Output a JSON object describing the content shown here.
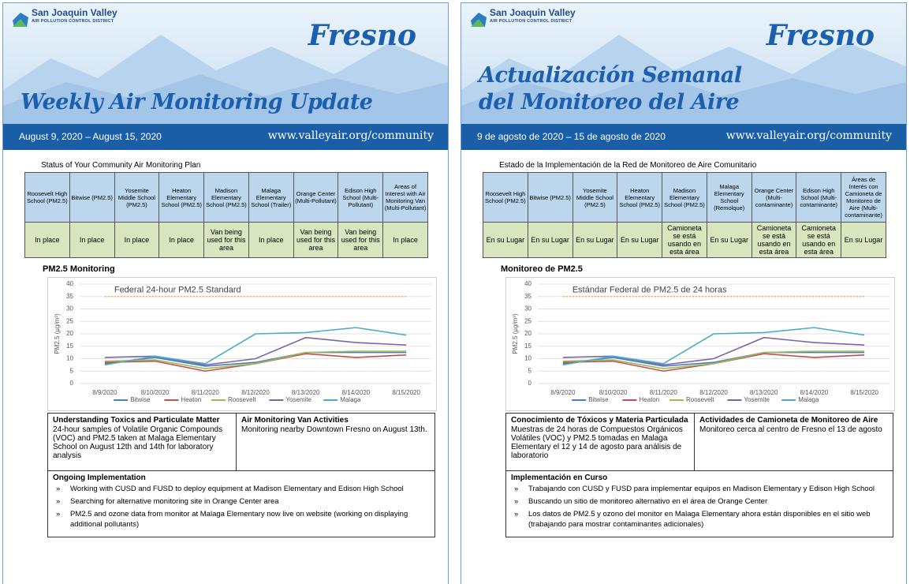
{
  "pages": [
    {
      "logo": {
        "name": "San Joaquin Valley",
        "subtitle": "AIR POLLUTION CONTROL DISTRICT"
      },
      "city": "Fresno",
      "title_lines": [
        "Weekly Air Monitoring Update"
      ],
      "dates": "August 9, 2020 – August 15, 2020",
      "url": "www.valleyair.org/community",
      "table": {
        "title": "Status of Your Community Air Monitoring Plan",
        "headers": [
          "Roosevelt High School (PM2.5)",
          "Bitwise (PM2.5)",
          "Yosemite Middle School (PM2.5)",
          "Heaton Elementary School (PM2.5)",
          "Madison Elementary School (PM2.5)",
          "Malaga Elementary School (Trailer)",
          "Orange Center (Multi-Pollutant)",
          "Edison High School (Multi-Pollutant)",
          "Areas of Interest with Air Monitoring Van (Multi-Pollutant)"
        ],
        "row": [
          "In place",
          "In place",
          "In place",
          "In place",
          "Van being used for this area",
          "In place",
          "Van being used for this area",
          "Van being used for this area",
          "In place"
        ]
      },
      "chart_title": "PM2.5 Monitoring",
      "boxes": [
        {
          "title": "Understanding Toxics and Particulate Matter",
          "text": "24-hour samples of Volatile Organic Compounds (VOC) and PM2.5 taken at Malaga Elementary School on August 12th and 14th for laboratory analysis"
        },
        {
          "title": "Air Monitoring Van Activities",
          "text": "Monitoring nearby Downtown Fresno on August 13th."
        }
      ],
      "ongoing": {
        "title": "Ongoing Implementation",
        "items": [
          "Working with CUSD and FUSD to deploy equipment at Madison Elementary and Edison High School",
          "Searching for alternative monitoring site in Orange Center area",
          "PM2.5 and ozone data from monitor at Malaga Elementary now live on website (working on displaying additional pollutants)"
        ]
      }
    },
    {
      "logo": {
        "name": "San Joaquin Valley",
        "subtitle": "AIR POLLUTION CONTROL DISTRICT"
      },
      "city": "Fresno",
      "title_lines": [
        "Actualización Semanal",
        "del Monitoreo del Aire"
      ],
      "dates": "9 de agosto de 2020 – 15 de agosto de 2020",
      "url": "www.valleyair.org/community",
      "table": {
        "title": "Estado de la Implementación de la Red de Monitoreo de Aire Comunitario",
        "headers": [
          "Roosevelt High School (PM2.5)",
          "Bitwise (PM2.5)",
          "Yosemite Middle School (PM2.5)",
          "Heaton Elementary School (PM2.5)",
          "Madison Elementary School (PM2.5)",
          "Malaga Elementary School (Remolque)",
          "Orange Center (Multi-contaminante)",
          "Edison High School (Multi-contaminante)",
          "Áreas de Interés con Camioneta de Monitoreo de Aire (Multi-contaminante)"
        ],
        "row": [
          "En su Lugar",
          "En su Lugar",
          "En su Lugar",
          "En su Lugar",
          "Camioneta se está usando en esta área",
          "En su Lugar",
          "Camioneta se está usando en esta área",
          "Camioneta se está usando en esta área",
          "En su Lugar"
        ]
      },
      "chart_title": "Monitoreo de PM2.5",
      "boxes": [
        {
          "title": "Conocimiento de Tóxicos y Materia Particulada",
          "text": "Muestras de 24 horas de Compuestos Orgánicos Volátiles (VOC) y PM2.5 tomadas en Malaga Elementary el 12 y 14 de agosto para análisis de laboratorio"
        },
        {
          "title": "Actividades de Camioneta de Monitoreo de Aire",
          "text": "Monitoreo cerca al centro de Fresno el 13 de agosto"
        }
      ],
      "ongoing": {
        "title": "Implementación en Curso",
        "items": [
          "Trabajando con CUSD y FUSD para implementar equipos en Madison Elementary y Edison High School",
          "Buscando un sitio de monitoreo alternativo en el área de Orange Center",
          "Los datos de PM2.5 y ozono del monitor en Malaga Elementary ahora están disponibles en el sitio web (trabajando para mostrar contaminantes adicionales)"
        ]
      }
    }
  ],
  "chart_data": [
    {
      "type": "line",
      "y_label": "PM2.5 (µg/m³)",
      "categories": [
        "8/9/2020",
        "8/10/2020",
        "8/11/2020",
        "8/12/2020",
        "8/13/2020",
        "8/14/2020",
        "8/15/2020"
      ],
      "series": [
        {
          "name": "Bitwise",
          "color": "#4a7ebb",
          "values": [
            8,
            10.5,
            7,
            8.5,
            12.5,
            12.5,
            12.5
          ]
        },
        {
          "name": "Heaton",
          "color": "#c0504d",
          "values": [
            8.5,
            9,
            5,
            8,
            12,
            10.5,
            11.5
          ]
        },
        {
          "name": "Roosevelt",
          "color": "#9bbb59",
          "values": [
            9,
            9.5,
            6,
            8,
            12.5,
            13,
            13
          ]
        },
        {
          "name": "Yosemite",
          "color": "#8064a2",
          "values": [
            10.5,
            11,
            7.5,
            10,
            18.5,
            16.5,
            15.5
          ]
        },
        {
          "name": "Malaga",
          "color": "#4bacc6",
          "values": [
            7.5,
            11,
            8,
            20,
            20.5,
            22.5,
            19.5
          ]
        }
      ],
      "standard": {
        "value": 35,
        "label": "Federal 24-hour PM2.5 Standard",
        "color": "#f0a050"
      },
      "ylim": [
        0,
        40
      ],
      "yticks": [
        0,
        5,
        10,
        15,
        20,
        25,
        30,
        35,
        40
      ],
      "grid": true,
      "legend": "bottom"
    },
    {
      "type": "line",
      "y_label": "PM2.5 (µg/m³)",
      "categories": [
        "8/9/2020",
        "8/10/2020",
        "8/11/2020",
        "8/12/2020",
        "8/13/2020",
        "8/14/2020",
        "8/15/2020"
      ],
      "series": [
        {
          "name": "Bitwise",
          "color": "#4a7ebb",
          "values": [
            8,
            10.5,
            7,
            8.5,
            12.5,
            12.5,
            12.5
          ]
        },
        {
          "name": "Heaton",
          "color": "#c0504d",
          "values": [
            8.5,
            9,
            5,
            8,
            12,
            10.5,
            11.5
          ]
        },
        {
          "name": "Roosevelt",
          "color": "#9bbb59",
          "values": [
            9,
            9.5,
            6,
            8,
            12.5,
            13,
            13
          ]
        },
        {
          "name": "Yosemite",
          "color": "#8064a2",
          "values": [
            10.5,
            11,
            7.5,
            10,
            18.5,
            16.5,
            15.5
          ]
        },
        {
          "name": "Malaga",
          "color": "#4bacc6",
          "values": [
            7.5,
            11,
            8,
            20,
            20.5,
            22.5,
            19.5
          ]
        }
      ],
      "standard": {
        "value": 35,
        "label": "Estándar Federal de PM2.5 de 24 horas",
        "color": "#f0a050"
      },
      "ylim": [
        0,
        40
      ],
      "yticks": [
        0,
        5,
        10,
        15,
        20,
        25,
        30,
        35,
        40
      ],
      "grid": true,
      "legend": "bottom"
    }
  ]
}
